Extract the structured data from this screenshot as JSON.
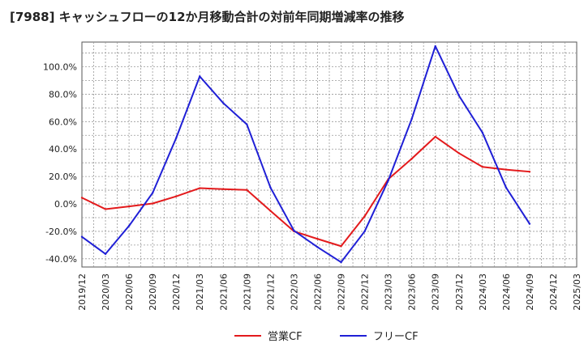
{
  "chart_data": {
    "type": "line",
    "title": "[7988]  キャッシュフローの12か月移動合計の対前年同期増減率の推移",
    "xlabel": "",
    "ylabel": "",
    "x_ticks": [
      "2019/12",
      "2020/03",
      "2020/06",
      "2020/09",
      "2020/12",
      "2021/03",
      "2021/06",
      "2021/09",
      "2021/12",
      "2022/03",
      "2022/06",
      "2022/09",
      "2022/12",
      "2023/03",
      "2023/06",
      "2023/09",
      "2023/12",
      "2024/03",
      "2024/06",
      "2024/09",
      "2024/12",
      "2025/03"
    ],
    "y_ticks": [
      "-40.0%",
      "-20.0%",
      "0.0%",
      "20.0%",
      "40.0%",
      "60.0%",
      "80.0%",
      "100.0%"
    ],
    "ylim": [
      -46,
      118
    ],
    "grid": true,
    "legend_position": "bottom",
    "series": [
      {
        "name": "営業CF",
        "color": "#e31a1c",
        "values": [
          4.5,
          -3.8,
          -1.8,
          0.3,
          5.5,
          11.5,
          10.8,
          10.2,
          -5.0,
          -20.0,
          -25.5,
          -30.8,
          -9.0,
          18.0,
          33.0,
          49.0,
          37.0,
          27.0,
          25.0,
          23.5
        ]
      },
      {
        "name": "フリーCF",
        "color": "#1f1fd6",
        "values": [
          -24.0,
          -36.5,
          -16.0,
          8.0,
          48.0,
          93.0,
          73.5,
          58.0,
          12.0,
          -19.5,
          -31.5,
          -42.5,
          -20.0,
          17.0,
          62.0,
          115.0,
          79.0,
          52.0,
          12.0,
          -14.5
        ]
      }
    ]
  }
}
